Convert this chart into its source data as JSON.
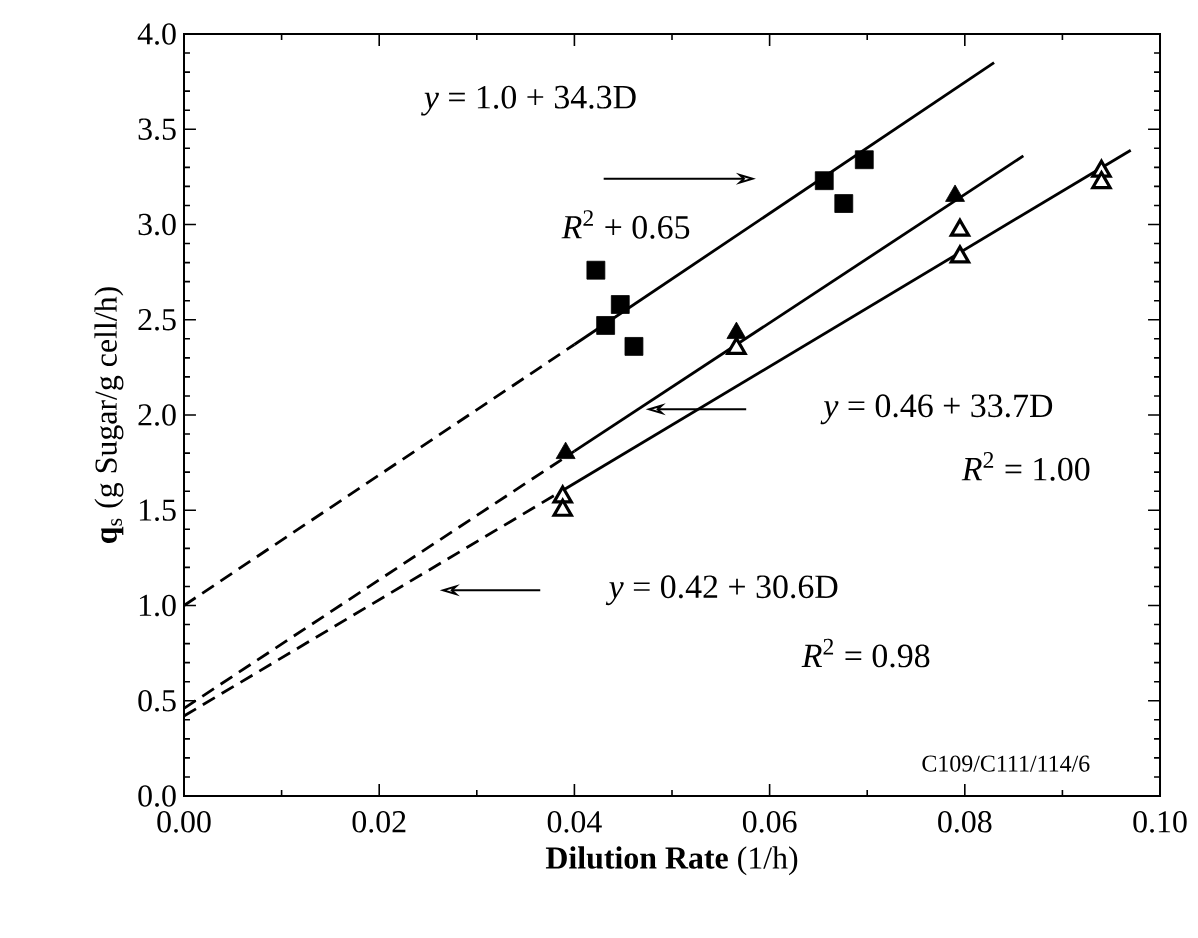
{
  "chart_data": {
    "type": "scatter",
    "xlabel": "**Dilution Rate** (1/h)",
    "ylabel": "**q**$_{s}$ (g Sugar/g cell/h)",
    "xlim": [
      0,
      0.1
    ],
    "ylim": [
      0,
      4.0
    ],
    "xticks": [
      {
        "value": 0,
        "label": "0.00"
      },
      {
        "value": 0.02,
        "label": "0.02"
      },
      {
        "value": 0.04,
        "label": "0.04"
      },
      {
        "value": 0.06,
        "label": "0.06"
      },
      {
        "value": 0.08,
        "label": "0.08"
      },
      {
        "value": 0.1,
        "label": "0.10"
      }
    ],
    "yticks": [
      {
        "value": 0,
        "label": "0.0"
      },
      {
        "value": 0.5,
        "label": "0.5"
      },
      {
        "value": 1.0,
        "label": "1.0"
      },
      {
        "value": 1.5,
        "label": "1.5"
      },
      {
        "value": 2.0,
        "label": "2.0"
      },
      {
        "value": 2.5,
        "label": "2.5"
      },
      {
        "value": 3.0,
        "label": "3.0"
      },
      {
        "value": 3.5,
        "label": "3.5"
      },
      {
        "value": 4.0,
        "label": "4.0"
      }
    ],
    "grid": false,
    "annotations": [
      "*y* = 1.0 + 34.3D",
      "*R*$^{2}$ + 0.65",
      "*y* = 0.46 + 33.7D",
      "*R*$^{2}$ = 1.00",
      "*y* = 0.42 + 30.6D",
      "*R*$^{2}$ = 0.98",
      "C109/C111/114/6"
    ],
    "series": [
      {
        "marker": "square",
        "color": "#000000",
        "x": [
          0.0422,
          0.0447,
          0.0432,
          0.0461,
          0.0656,
          0.0676,
          0.0697
        ],
        "values": [
          2.76,
          2.58,
          2.47,
          2.36,
          3.23,
          3.11,
          3.34
        ]
      },
      {
        "marker": "triangle",
        "color": "#000000",
        "x": [
          0.0391,
          0.0566,
          0.079
        ],
        "values": [
          1.8,
          2.43,
          3.15
        ]
      },
      {
        "marker": "triangle-open",
        "color": "#000000",
        "x": [
          0.0388,
          0.0388,
          0.0566,
          0.0795,
          0.0795,
          0.094,
          0.094
        ],
        "values": [
          1.57,
          1.5,
          2.35,
          2.97,
          2.83,
          3.28,
          3.22
        ]
      },
      {
        "type": "line",
        "line_style": "dashed",
        "color": "#000000",
        "x": [
          0,
          0.04
        ],
        "values": [
          1.0,
          2.37
        ]
      },
      {
        "type": "line",
        "line_style": "solid",
        "color": "#000000",
        "x": [
          0.04,
          0.083
        ],
        "values": [
          2.37,
          3.85
        ]
      },
      {
        "type": "line",
        "line_style": "dashed",
        "color": "#000000",
        "x": [
          0,
          0.04
        ],
        "values": [
          0.46,
          1.81
        ]
      },
      {
        "type": "line",
        "line_style": "solid",
        "color": "#000000",
        "x": [
          0.04,
          0.086
        ],
        "values": [
          1.81,
          3.36
        ]
      },
      {
        "type": "line",
        "line_style": "dashed",
        "color": "#000000",
        "x": [
          0,
          0.039
        ],
        "values": [
          0.42,
          1.61
        ]
      },
      {
        "type": "line",
        "line_style": "solid",
        "color": "#000000",
        "x": [
          0.039,
          0.097
        ],
        "values": [
          1.61,
          3.39
        ]
      }
    ]
  }
}
